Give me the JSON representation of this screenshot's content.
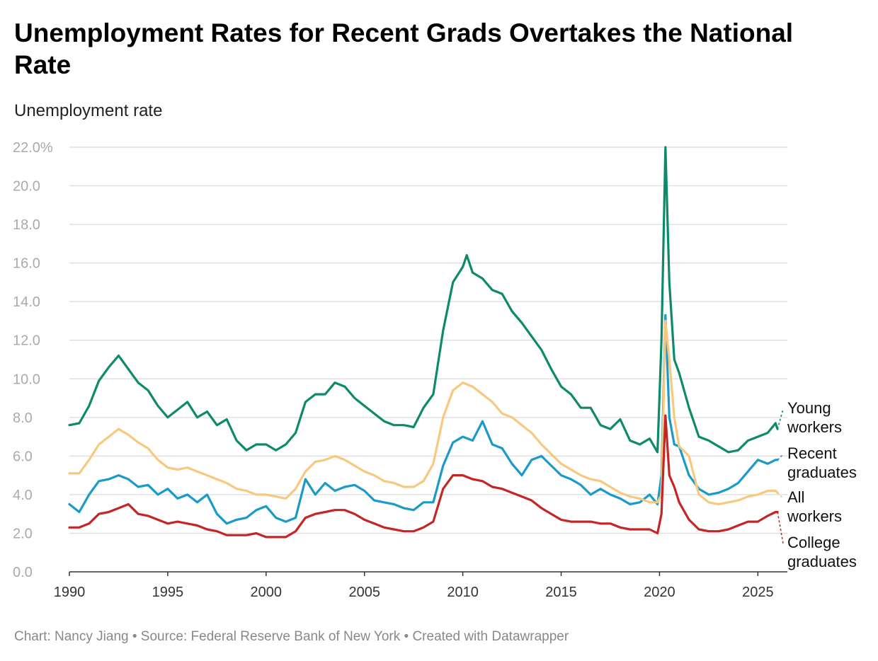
{
  "title": "Unemployment Rates for Recent Grads Overtakes the National Rate",
  "subtitle": "Unemployment rate",
  "footer": "Chart: Nancy Jiang • Source: Federal Reserve Bank of New York • Created with Datawrapper",
  "chart_data": {
    "type": "line",
    "title": "Unemployment Rates for Recent Grads Overtakes the National Rate",
    "ylabel": "Unemployment rate",
    "xlabel": "",
    "xlim": [
      1990,
      2026.5
    ],
    "ylim": [
      0,
      22
    ],
    "yticks": [
      0,
      2,
      4,
      6,
      8,
      10,
      12,
      14,
      16,
      18,
      20,
      22
    ],
    "ytick_labels": [
      "0.0",
      "2.0",
      "4.0",
      "6.0",
      "8.0",
      "10.0",
      "12.0",
      "14.0",
      "16.0",
      "18.0",
      "20.0",
      "22.0%"
    ],
    "xticks": [
      1990,
      1995,
      2000,
      2005,
      2010,
      2015,
      2020,
      2025
    ],
    "xtick_labels": [
      "1990",
      "1995",
      "2000",
      "2005",
      "2010",
      "2015",
      "2020",
      "2025"
    ],
    "grid": true,
    "legend": "direct labels at right end of lines",
    "series": [
      {
        "name": "Young workers",
        "label_lines": [
          "Young",
          "workers"
        ],
        "color": "#0d8a6a",
        "x": [
          1990,
          1990.5,
          1991,
          1991.5,
          1992,
          1992.5,
          1993,
          1993.5,
          1994,
          1994.5,
          1995,
          1995.5,
          1996,
          1996.5,
          1997,
          1997.5,
          1998,
          1998.5,
          1999,
          1999.5,
          2000,
          2000.5,
          2001,
          2001.5,
          2002,
          2002.5,
          2003,
          2003.5,
          2004,
          2004.5,
          2005,
          2005.5,
          2006,
          2006.5,
          2007,
          2007.5,
          2008,
          2008.5,
          2009,
          2009.5,
          2010,
          2010.2,
          2010.5,
          2011,
          2011.5,
          2012,
          2012.5,
          2013,
          2013.5,
          2014,
          2014.5,
          2015,
          2015.5,
          2016,
          2016.5,
          2017,
          2017.5,
          2018,
          2018.5,
          2019,
          2019.5,
          2019.9,
          2020.1,
          2020.3,
          2020.5,
          2020.75,
          2021,
          2021.5,
          2022,
          2022.5,
          2023,
          2023.5,
          2024,
          2024.5,
          2025,
          2025.5,
          2025.9,
          2026
        ],
        "values": [
          7.6,
          7.7,
          8.6,
          9.9,
          10.6,
          11.2,
          10.5,
          9.8,
          9.4,
          8.6,
          8.0,
          8.4,
          8.8,
          8.0,
          8.3,
          7.6,
          7.9,
          6.8,
          6.3,
          6.6,
          6.6,
          6.3,
          6.6,
          7.2,
          8.8,
          9.2,
          9.2,
          9.8,
          9.6,
          9.0,
          8.6,
          8.2,
          7.8,
          7.6,
          7.6,
          7.5,
          8.5,
          9.2,
          12.5,
          15.0,
          15.8,
          16.4,
          15.5,
          15.2,
          14.6,
          14.4,
          13.5,
          12.9,
          12.2,
          11.5,
          10.5,
          9.6,
          9.2,
          8.5,
          8.5,
          7.6,
          7.4,
          7.9,
          6.8,
          6.6,
          6.9,
          6.2,
          12.0,
          22.0,
          15.0,
          11.0,
          10.3,
          8.5,
          7.0,
          6.8,
          6.5,
          6.2,
          6.3,
          6.8,
          7.0,
          7.2,
          7.7,
          7.4
        ]
      },
      {
        "name": "Recent graduates",
        "label_lines": [
          "Recent",
          "graduates"
        ],
        "color": "#1a9ac9",
        "x": [
          1990,
          1990.5,
          1991,
          1991.5,
          1992,
          1992.5,
          1993,
          1993.5,
          1994,
          1994.5,
          1995,
          1995.5,
          1996,
          1996.5,
          1997,
          1997.5,
          1998,
          1998.5,
          1999,
          1999.5,
          2000,
          2000.5,
          2001,
          2001.5,
          2002,
          2002.5,
          2003,
          2003.5,
          2004,
          2004.5,
          2005,
          2005.5,
          2006,
          2006.5,
          2007,
          2007.5,
          2008,
          2008.5,
          2009,
          2009.5,
          2010,
          2010.5,
          2011,
          2011.5,
          2012,
          2012.5,
          2013,
          2013.5,
          2014,
          2014.5,
          2015,
          2015.5,
          2016,
          2016.5,
          2017,
          2017.5,
          2018,
          2018.5,
          2019,
          2019.5,
          2019.9,
          2020.1,
          2020.3,
          2020.5,
          2020.75,
          2021,
          2021.5,
          2022,
          2022.5,
          2023,
          2023.5,
          2024,
          2024.5,
          2025,
          2025.5,
          2025.9,
          2026
        ],
        "values": [
          3.5,
          3.1,
          4.0,
          4.7,
          4.8,
          5.0,
          4.8,
          4.4,
          4.5,
          4.0,
          4.3,
          3.8,
          4.0,
          3.6,
          4.0,
          3.0,
          2.5,
          2.7,
          2.8,
          3.2,
          3.4,
          2.8,
          2.6,
          2.8,
          4.8,
          4.0,
          4.6,
          4.2,
          4.4,
          4.5,
          4.2,
          3.7,
          3.6,
          3.5,
          3.3,
          3.2,
          3.6,
          3.6,
          5.5,
          6.7,
          7.0,
          6.8,
          7.8,
          6.6,
          6.4,
          5.6,
          5.0,
          5.8,
          6.0,
          5.5,
          5.0,
          4.8,
          4.5,
          4.0,
          4.3,
          4.0,
          3.8,
          3.5,
          3.6,
          4.0,
          3.5,
          5.0,
          13.3,
          8.0,
          6.6,
          6.5,
          5.0,
          4.3,
          4.0,
          4.1,
          4.3,
          4.6,
          5.2,
          5.8,
          5.6,
          5.8,
          5.8
        ]
      },
      {
        "name": "All workers",
        "label_lines": [
          "All",
          "workers"
        ],
        "color": "#f7c97e",
        "x": [
          1990,
          1990.5,
          1991,
          1991.5,
          1992,
          1992.5,
          1993,
          1993.5,
          1994,
          1994.5,
          1995,
          1995.5,
          1996,
          1996.5,
          1997,
          1997.5,
          1998,
          1998.5,
          1999,
          1999.5,
          2000,
          2000.5,
          2001,
          2001.5,
          2002,
          2002.5,
          2003,
          2003.5,
          2004,
          2004.5,
          2005,
          2005.5,
          2006,
          2006.5,
          2007,
          2007.5,
          2008,
          2008.5,
          2009,
          2009.5,
          2010,
          2010.5,
          2011,
          2011.5,
          2012,
          2012.5,
          2013,
          2013.5,
          2014,
          2014.5,
          2015,
          2015.5,
          2016,
          2016.5,
          2017,
          2017.5,
          2018,
          2018.5,
          2019,
          2019.5,
          2019.9,
          2020.1,
          2020.3,
          2020.5,
          2020.75,
          2021,
          2021.5,
          2022,
          2022.5,
          2023,
          2023.5,
          2024,
          2024.5,
          2025,
          2025.5,
          2025.9,
          2026
        ],
        "values": [
          5.1,
          5.1,
          5.8,
          6.6,
          7.0,
          7.4,
          7.1,
          6.7,
          6.4,
          5.8,
          5.4,
          5.3,
          5.4,
          5.2,
          5.0,
          4.8,
          4.6,
          4.3,
          4.2,
          4.0,
          4.0,
          3.9,
          3.8,
          4.3,
          5.2,
          5.7,
          5.8,
          6.0,
          5.8,
          5.5,
          5.2,
          5.0,
          4.7,
          4.6,
          4.4,
          4.4,
          4.7,
          5.6,
          8.0,
          9.4,
          9.8,
          9.6,
          9.2,
          8.8,
          8.2,
          8.0,
          7.6,
          7.2,
          6.6,
          6.1,
          5.6,
          5.3,
          5.0,
          4.8,
          4.7,
          4.4,
          4.1,
          3.9,
          3.8,
          3.6,
          3.6,
          4.0,
          13.0,
          11.0,
          8.0,
          6.5,
          6.0,
          4.0,
          3.6,
          3.5,
          3.6,
          3.7,
          3.9,
          4.0,
          4.2,
          4.2,
          4.1
        ]
      },
      {
        "name": "College graduates",
        "label_lines": [
          "College",
          "graduates"
        ],
        "color": "#c42525",
        "x": [
          1990,
          1990.5,
          1991,
          1991.5,
          1992,
          1992.5,
          1993,
          1993.5,
          1994,
          1994.5,
          1995,
          1995.5,
          1996,
          1996.5,
          1997,
          1997.5,
          1998,
          1998.5,
          1999,
          1999.5,
          2000,
          2000.5,
          2001,
          2001.5,
          2002,
          2002.5,
          2003,
          2003.5,
          2004,
          2004.5,
          2005,
          2005.5,
          2006,
          2006.5,
          2007,
          2007.5,
          2008,
          2008.5,
          2009,
          2009.5,
          2010,
          2010.5,
          2011,
          2011.5,
          2012,
          2012.5,
          2013,
          2013.5,
          2014,
          2014.5,
          2015,
          2015.5,
          2016,
          2016.5,
          2017,
          2017.5,
          2018,
          2018.5,
          2019,
          2019.5,
          2019.9,
          2020.1,
          2020.3,
          2020.5,
          2020.75,
          2021,
          2021.5,
          2022,
          2022.5,
          2023,
          2023.5,
          2024,
          2024.5,
          2025,
          2025.5,
          2025.9,
          2026
        ],
        "values": [
          2.3,
          2.3,
          2.5,
          3.0,
          3.1,
          3.3,
          3.5,
          3.0,
          2.9,
          2.7,
          2.5,
          2.6,
          2.5,
          2.4,
          2.2,
          2.1,
          1.9,
          1.9,
          1.9,
          2.0,
          1.8,
          1.8,
          1.8,
          2.1,
          2.8,
          3.0,
          3.1,
          3.2,
          3.2,
          3.0,
          2.7,
          2.5,
          2.3,
          2.2,
          2.1,
          2.1,
          2.3,
          2.6,
          4.3,
          5.0,
          5.0,
          4.8,
          4.7,
          4.4,
          4.3,
          4.1,
          3.9,
          3.7,
          3.3,
          3.0,
          2.7,
          2.6,
          2.6,
          2.6,
          2.5,
          2.5,
          2.3,
          2.2,
          2.2,
          2.2,
          2.0,
          3.0,
          8.1,
          5.0,
          4.4,
          3.6,
          2.7,
          2.2,
          2.1,
          2.1,
          2.2,
          2.4,
          2.6,
          2.6,
          2.9,
          3.1,
          3.1
        ]
      }
    ]
  }
}
